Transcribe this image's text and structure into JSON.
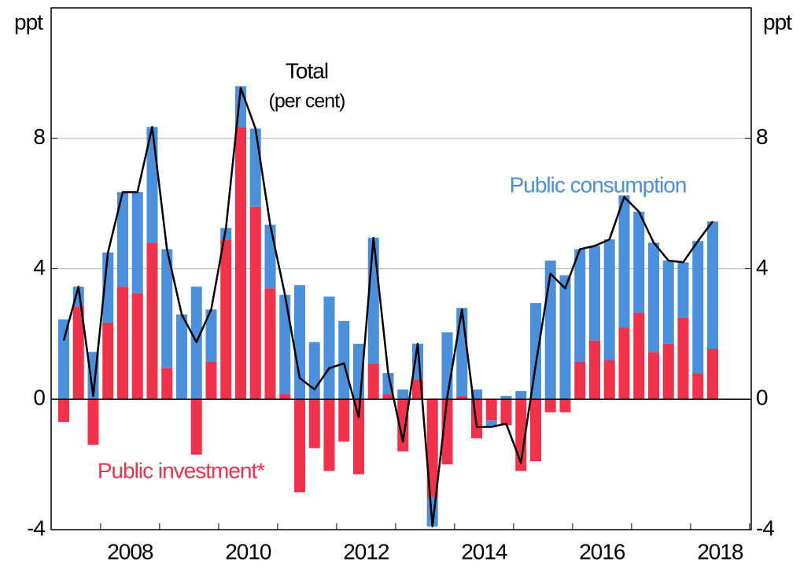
{
  "chart_data": {
    "type": "bar",
    "stacked": true,
    "categories": [
      null,
      null,
      null,
      null,
      "2008",
      null,
      null,
      null,
      null,
      null,
      null,
      null,
      "2010",
      null,
      null,
      null,
      null,
      null,
      null,
      null,
      "2012",
      null,
      null,
      null,
      null,
      null,
      null,
      null,
      "2014",
      null,
      null,
      null,
      null,
      null,
      null,
      null,
      "2016",
      null,
      null,
      null,
      null,
      null,
      null,
      null,
      "2018"
    ],
    "series": [
      {
        "name": "Public investment*",
        "color": "#f2314a",
        "values": [
          -0.7,
          2.85,
          -1.4,
          2.35,
          3.45,
          3.25,
          4.8,
          0.95,
          0,
          -1.7,
          1.15,
          4.9,
          8.35,
          5.9,
          3.4,
          0.15,
          -2.85,
          -1.5,
          -2.2,
          -1.3,
          -2.3,
          1.1,
          0.15,
          -1.6,
          0.6,
          -3.0,
          -2.0,
          0.1,
          -1.2,
          -0.65,
          -0.8,
          -2.2,
          -1.9,
          -0.4,
          -0.4,
          1.15,
          1.8,
          1.2,
          2.2,
          2.65,
          1.45,
          1.7,
          2.5,
          0.8,
          1.55
        ]
      },
      {
        "name": "Public consumption",
        "color": "#4a90dc",
        "values": [
          2.45,
          0.6,
          1.45,
          2.15,
          2.9,
          3.1,
          3.55,
          3.65,
          2.6,
          3.45,
          1.6,
          0.35,
          1.25,
          2.4,
          1.95,
          3.05,
          3.5,
          1.75,
          3.15,
          2.4,
          1.7,
          3.85,
          0.65,
          0.3,
          1.1,
          -0.9,
          2.05,
          2.7,
          0.3,
          -0.2,
          0.1,
          0.25,
          2.95,
          4.25,
          3.8,
          3.45,
          2.9,
          3.7,
          4.05,
          3.1,
          3.35,
          2.55,
          1.7,
          4.05,
          3.9
        ]
      },
      {
        "name": "Total",
        "type": "line",
        "color": "#000000",
        "values": [
          1.8,
          3.45,
          0.1,
          4.5,
          6.35,
          6.35,
          8.35,
          4.6,
          2.6,
          1.75,
          2.75,
          5.25,
          9.55,
          8.3,
          5.35,
          3.2,
          0.65,
          0.3,
          0.95,
          1.1,
          -0.55,
          4.95,
          0.8,
          -1.3,
          1.7,
          -3.9,
          0.05,
          2.75,
          -0.85,
          -0.85,
          -0.75,
          -1.95,
          1.05,
          3.85,
          3.4,
          4.6,
          4.7,
          4.9,
          6.2,
          5.75,
          4.8,
          4.25,
          4.2,
          4.85,
          5.45
        ]
      }
    ],
    "annotations": {
      "total": "Total",
      "total_unit": "(per cent)",
      "consumption": "Public consumption",
      "investment": "Public investment*"
    },
    "ylabel": "ppt",
    "y2label": "ppt",
    "ylim": [
      -4,
      12
    ],
    "yticks": [
      -4,
      0,
      4,
      8
    ],
    "y2lim": [
      -4,
      12
    ],
    "y2ticks": [
      -4,
      0,
      4,
      8
    ],
    "grid": true
  }
}
